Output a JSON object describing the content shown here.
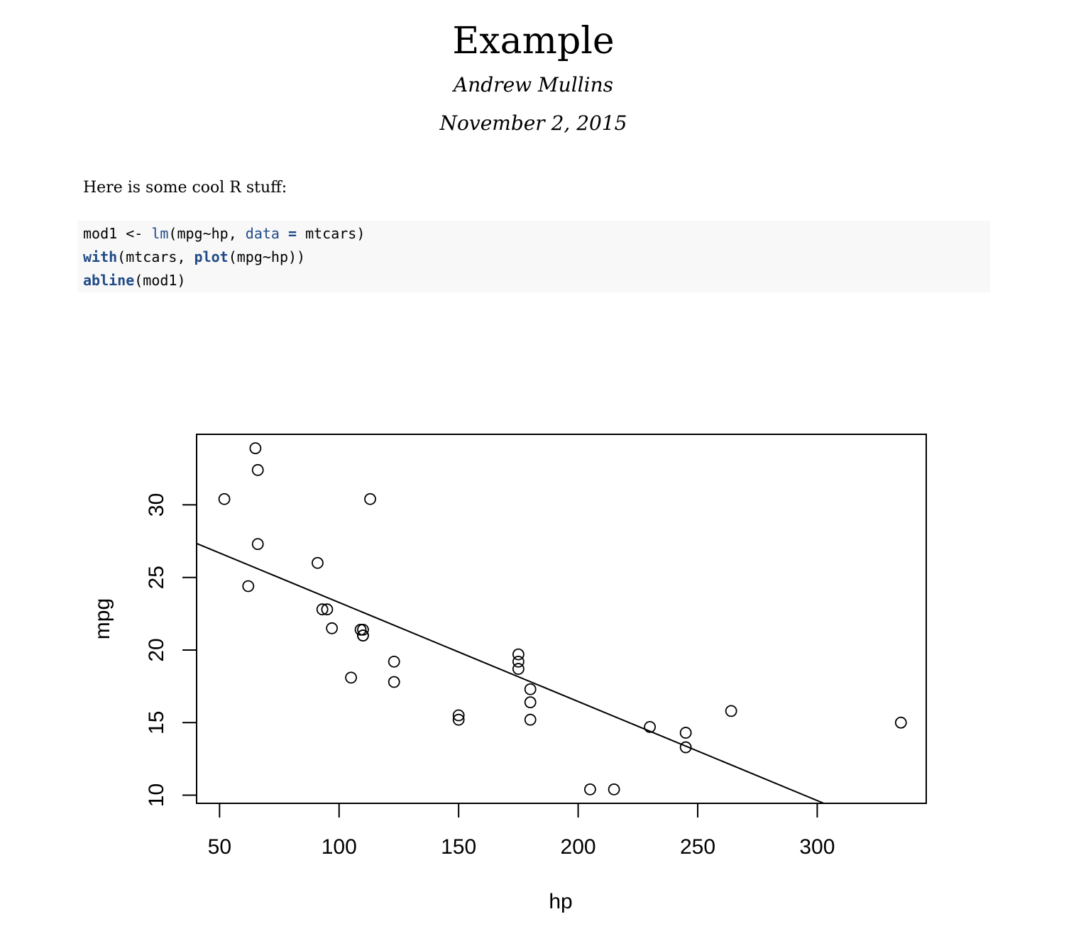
{
  "document": {
    "title": "Example",
    "author": "Andrew Mullins",
    "date": "November 2, 2015",
    "intro": "Here is some cool R stuff:"
  },
  "code": {
    "line1": {
      "a": "mod1 <- ",
      "b": "lm",
      "c": "(mpg~hp, ",
      "d": "data",
      "e": " =",
      "f": " mtcars)"
    },
    "line2": {
      "a": "with",
      "b": "(mtcars, ",
      "c": "plot",
      "d": "(mpg~hp))"
    },
    "line3": {
      "a": "abline",
      "b": "(mod1)"
    }
  },
  "chart_data": {
    "type": "scatter",
    "xlabel": "hp",
    "ylabel": "mpg",
    "xlim": [
      40.4,
      345.6
    ],
    "ylim": [
      9.44,
      34.86
    ],
    "x_ticks": [
      50,
      100,
      150,
      200,
      250,
      300
    ],
    "y_ticks": [
      10,
      15,
      20,
      25,
      30
    ],
    "grid": false,
    "x": [
      110,
      110,
      93,
      110,
      175,
      105,
      245,
      62,
      95,
      123,
      123,
      180,
      180,
      180,
      205,
      215,
      230,
      66,
      52,
      65,
      97,
      150,
      150,
      245,
      175,
      66,
      91,
      113,
      264,
      175,
      335,
      109
    ],
    "y": [
      21.0,
      21.0,
      22.8,
      21.4,
      18.7,
      18.1,
      14.3,
      24.4,
      22.8,
      19.2,
      17.8,
      16.4,
      17.3,
      15.2,
      10.4,
      10.4,
      14.7,
      32.4,
      30.4,
      33.9,
      21.5,
      15.5,
      15.2,
      13.3,
      19.2,
      27.3,
      26.0,
      30.4,
      15.8,
      19.7,
      15.0,
      21.4
    ],
    "regression_line": {
      "intercept": 30.09886,
      "slope": -0.06823
    }
  }
}
